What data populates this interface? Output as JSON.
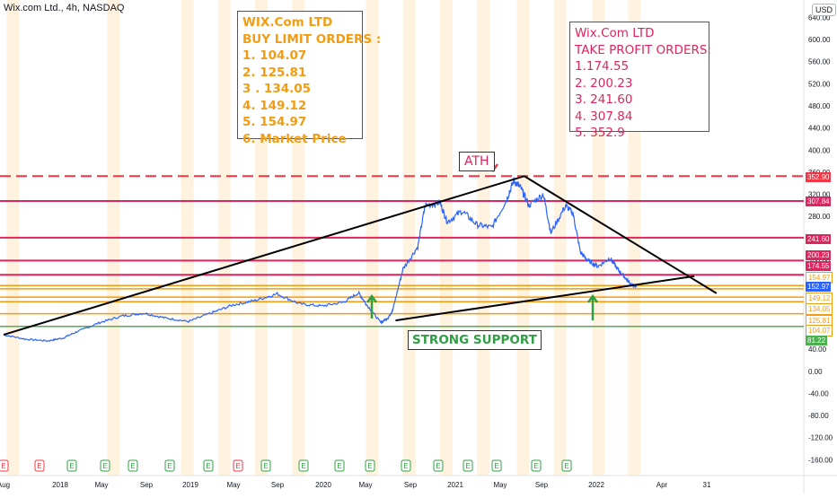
{
  "header": {
    "title": "Wix.com Ltd., 4h, NASDAQ",
    "currency": "USD"
  },
  "buy_box": {
    "lines": [
      "WIX.Com  LTD",
      "BUY LIMIT ORDERS :",
      "1. 104.07",
      "2. 125.81",
      "3 . 134.05",
      "4. 149.12",
      "5. 154.97",
      "6. Market Price"
    ]
  },
  "tp_box": {
    "lines": [
      "Wix.Com LTD",
      "TAKE PROFIT ORDERS:",
      "1.174.55",
      "2. 200.23",
      "3. 241.60",
      "4. 307.84",
      "5. 352.9"
    ]
  },
  "annotations": {
    "ath": "ATH",
    "support": "STRONG SUPPORT"
  },
  "colors": {
    "price_line": "#2962ff",
    "take_profit": "#e0245e",
    "buy_level": "#f39c12",
    "support": "#4caf50",
    "trendline": "#000000",
    "earnings_band": "#fff3e0",
    "ath_line": "#f23645",
    "current_price": "#2962ff"
  },
  "chart_data": {
    "type": "line",
    "x_axis_labels": [
      "Aug",
      "2018",
      "May",
      "Sep",
      "2019",
      "May",
      "Sep",
      "2020",
      "May",
      "Sep",
      "2021",
      "May",
      "Sep",
      "2022",
      "Apr",
      "31"
    ],
    "y_axis_labels": [
      "640.00",
      "600.00",
      "560.00",
      "520.00",
      "480.00",
      "440.00",
      "400.00",
      "360.00",
      "320.00",
      "280.00",
      "240.00",
      "200.00",
      "160.00",
      "120.00",
      "80.00",
      "40.00",
      "0.00",
      "-40.00",
      "-80.00",
      "-120.00",
      "-160.00"
    ],
    "ylim": [
      -170,
      660
    ],
    "series": [
      {
        "x": [
          2017.6,
          2017.75,
          2017.9,
          2018.0,
          2018.1,
          2018.25,
          2018.4,
          2018.55,
          2018.7,
          2018.85,
          2019.0,
          2019.15,
          2019.3,
          2019.45,
          2019.6,
          2019.75,
          2019.9,
          2020.0,
          2020.05,
          2020.15,
          2020.2,
          2020.23,
          2020.3,
          2020.4,
          2020.45,
          2020.55,
          2020.6,
          2020.7,
          2020.8,
          2020.9,
          2021.0,
          2021.05,
          2021.1,
          2021.15,
          2021.25,
          2021.3,
          2021.4,
          2021.45,
          2021.5,
          2021.55,
          2021.62,
          2021.7,
          2021.75,
          2021.8,
          2021.85,
          2021.88
        ],
        "y": [
          66,
          58,
          55,
          60,
          72,
          88,
          100,
          105,
          96,
          90,
          105,
          120,
          128,
          140,
          122,
          118,
          125,
          142,
          122,
          88,
          97,
          110,
          185,
          225,
          300,
          305,
          270,
          290,
          265,
          260,
          310,
          345,
          330,
          300,
          320,
          250,
          300,
          285,
          215,
          200,
          190,
          205,
          185,
          170,
          155,
          153
        ]
      }
    ],
    "take_profit_levels": [
      174.55,
      200.23,
      241.6,
      307.84,
      352.9
    ],
    "buy_limit_levels": [
      104.07,
      125.81,
      134.05,
      149.12,
      154.97
    ],
    "support_level": 81.22,
    "current_price": 152.97,
    "ath": 352.9,
    "price_tags": [
      {
        "label": "352.90",
        "value": 352.9,
        "color": "#f23645"
      },
      {
        "label": "307.84",
        "value": 307.84,
        "color": "#e0245e"
      },
      {
        "label": "241.60",
        "value": 241.6,
        "color": "#e0245e"
      },
      {
        "label": "200.23",
        "value": 200.23,
        "color": "#e0245e"
      },
      {
        "label": "174.55",
        "value": 174.55,
        "color": "#e0245e"
      },
      {
        "label": "154.97",
        "value": 154.97,
        "color": "#f39c12"
      },
      {
        "label": "152.97",
        "value": 152.97,
        "color": "#2962ff"
      },
      {
        "label": "149.12",
        "value": 149.12,
        "color": "#f39c12"
      },
      {
        "label": "134.05",
        "value": 134.05,
        "color": "#f39c12"
      },
      {
        "label": "125.81",
        "value": 125.81,
        "color": "#f39c12"
      },
      {
        "label": "104.07",
        "value": 104.07,
        "color": "#f39c12"
      },
      {
        "label": "81.22",
        "value": 81.22,
        "color": "#4caf50"
      }
    ],
    "trendlines": [
      {
        "x": [
          2017.6,
          2021.12
        ],
        "y": [
          66,
          352.9
        ]
      },
      {
        "x": [
          2021.12,
          2022.42
        ],
        "y": [
          352.9,
          141
        ]
      },
      {
        "x": [
          2020.25,
          2022.27
        ],
        "y": [
          92,
          172
        ]
      }
    ],
    "earnings_markers": [
      "E",
      "E",
      "E",
      "E",
      "E",
      "E",
      "E",
      "E",
      "E",
      "E",
      "E",
      "E",
      "E",
      "E",
      "E",
      "E",
      "E",
      "E",
      "E",
      "E"
    ],
    "earnings_marker_colors": [
      "red",
      "red",
      "green",
      "green",
      "green",
      "green",
      "green",
      "green",
      "red",
      "green",
      "green",
      "green",
      "green",
      "green",
      "green",
      "green",
      "green",
      "green",
      "green",
      "green"
    ],
    "earnings_marker_x": [
      2017.6,
      2017.83,
      2018.08,
      2018.33,
      2018.58,
      2018.83,
      2019.08,
      2019.33,
      2019.58,
      2019.83,
      2020.08,
      2020.33,
      2020.58,
      2020.83,
      2021.08,
      2021.33,
      2021.58,
      2021.83,
      2020.92,
      2021.67
    ],
    "grid": false
  }
}
